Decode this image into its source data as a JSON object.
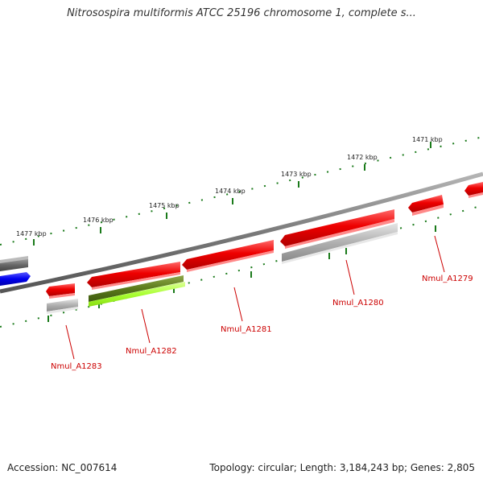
{
  "title": "Nitrosospira multiformis ATCC 25196 chromosome 1, complete s...",
  "footer": {
    "accession": "Accession: NC_007614",
    "summary": "Topology: circular; Length: 3,184,243 bp; Genes: 2,805"
  },
  "ruler": {
    "labels": [
      "1471 kbp",
      "1472 kbp",
      "1473 kbp",
      "1474 kbp",
      "1475 kbp",
      "1476 kbp",
      "1477 kbp"
    ],
    "tick_color": "#1a7a1a"
  },
  "gene_labels": [
    "Nmul_A1279",
    "Nmul_A1280",
    "Nmul_A1281",
    "Nmul_A1282",
    "Nmul_A1283"
  ],
  "colors": {
    "label": "#cc0000",
    "backbone": "#7a7a7a",
    "gene_red": "#ee0000",
    "gene_gray": "#a8a8a8",
    "gene_dark": "#666666",
    "gene_blue": "#0000ee",
    "gene_olive": "#5a7a1a",
    "gene_lime": "#aaff33"
  }
}
